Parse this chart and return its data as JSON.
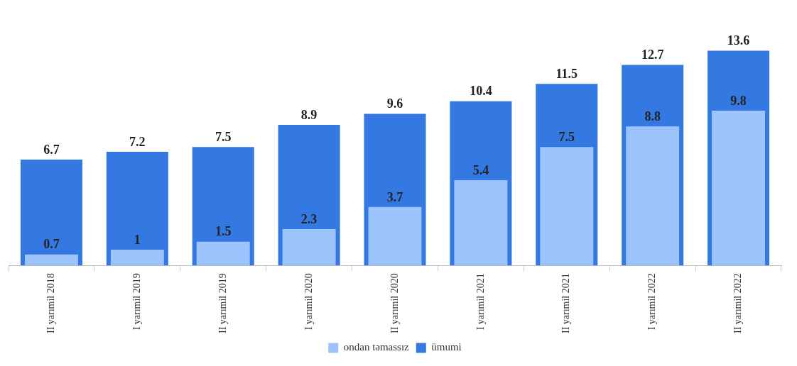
{
  "chart_data": {
    "type": "bar",
    "categories": [
      "II yarımil 2018",
      "I yarımil 2019",
      "II yarımil 2019",
      "I yarımil 2020",
      "II yarımil 2020",
      "I yarımil 2021",
      "II yarımil 2021",
      "I yarımil 2022",
      "II yarımil 2022"
    ],
    "series": [
      {
        "name": "ondan təmassız",
        "color": "#9cc3fb",
        "values": [
          0.7,
          1,
          1.5,
          2.3,
          3.7,
          5.4,
          7.5,
          8.8,
          9.8
        ]
      },
      {
        "name": "ümumi",
        "color": "#3479e1",
        "values": [
          6.7,
          7.2,
          7.5,
          8.9,
          9.6,
          10.4,
          11.5,
          12.7,
          13.6
        ]
      }
    ],
    "data_labels": true,
    "legend": "bottom",
    "grid": false
  }
}
